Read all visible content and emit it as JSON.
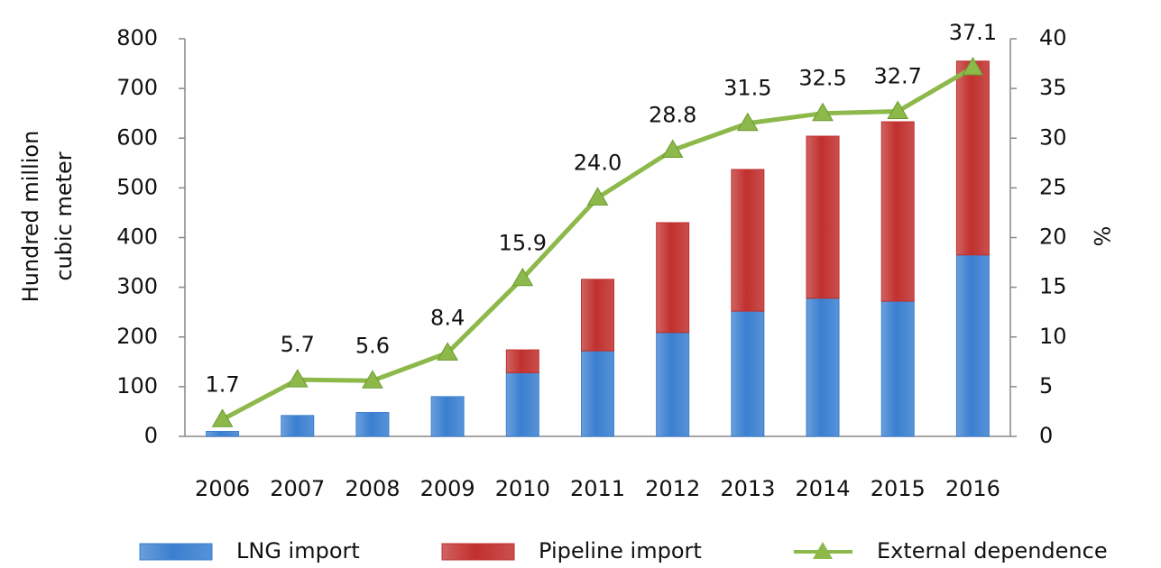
{
  "chart_data": {
    "type": "bar",
    "y_label": [
      "Hundred million",
      "cubic meter"
    ],
    "y2_label": "%",
    "categories": [
      "2006",
      "2007",
      "2008",
      "2009",
      "2010",
      "2011",
      "2012",
      "2013",
      "2014",
      "2015",
      "2016"
    ],
    "stacked": true,
    "series": [
      {
        "name": "LNG import",
        "type": "bar",
        "color": "#3a7fd0",
        "values": [
          10,
          42,
          48,
          80,
          128,
          172,
          209,
          252,
          278,
          272,
          365
        ]
      },
      {
        "name": "Pipeline import",
        "type": "bar",
        "color": "#c0302e",
        "values": [
          0,
          0,
          0,
          0,
          46,
          144,
          221,
          285,
          326,
          361,
          390
        ]
      },
      {
        "name": "External dependence",
        "type": "line",
        "axis": "y2",
        "color": "#8db84a",
        "values": [
          1.7,
          5.7,
          5.6,
          8.4,
          15.9,
          24.0,
          28.8,
          31.5,
          32.5,
          32.7,
          37.1
        ],
        "value_labels": [
          "1.7",
          "5.7",
          "5.6",
          "8.4",
          "15.9",
          "24.0",
          "28.8",
          "31.5",
          "32.5",
          "32.7",
          "37.1"
        ]
      }
    ],
    "ylim": [
      0,
      800
    ],
    "yticks": [
      0,
      100,
      200,
      300,
      400,
      500,
      600,
      700,
      800
    ],
    "y2lim": [
      0,
      40
    ],
    "y2ticks": [
      0,
      5,
      10,
      15,
      20,
      25,
      30,
      35,
      40
    ],
    "legend": "bottom"
  }
}
